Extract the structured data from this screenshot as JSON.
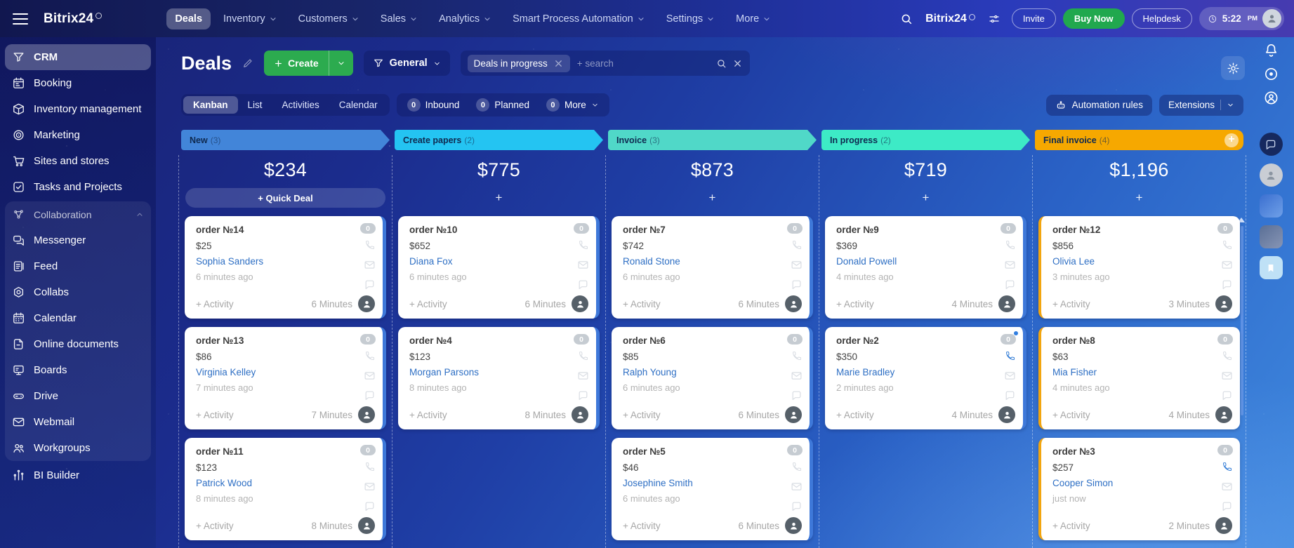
{
  "topbar": {
    "logo": "Bitrix24",
    "menu": [
      {
        "label": "Deals",
        "active": true,
        "caret": false
      },
      {
        "label": "Inventory",
        "caret": true
      },
      {
        "label": "Customers",
        "caret": true
      },
      {
        "label": "Sales",
        "caret": true
      },
      {
        "label": "Analytics",
        "caret": true
      },
      {
        "label": "Smart Process Automation",
        "caret": true
      },
      {
        "label": "Settings",
        "caret": true
      },
      {
        "label": "More",
        "caret": true
      }
    ],
    "portal": "Bitrix24",
    "invite": "Invite",
    "buy": "Buy Now",
    "helpdesk": "Helpdesk",
    "time": "5:22",
    "meridiem": "PM"
  },
  "sidebar": {
    "items_top": [
      {
        "label": "CRM",
        "icon": "crm",
        "active": true
      },
      {
        "label": "Booking",
        "icon": "booking"
      },
      {
        "label": "Inventory management",
        "icon": "inventory"
      },
      {
        "label": "Marketing",
        "icon": "marketing"
      },
      {
        "label": "Sites and stores",
        "icon": "sites"
      },
      {
        "label": "Tasks and Projects",
        "icon": "tasks"
      }
    ],
    "group": {
      "header": "Collaboration",
      "items": [
        {
          "label": "Messenger",
          "icon": "messenger"
        },
        {
          "label": "Feed",
          "icon": "feed"
        },
        {
          "label": "Collabs",
          "icon": "collabs"
        },
        {
          "label": "Calendar",
          "icon": "calendar"
        },
        {
          "label": "Online documents",
          "icon": "documents"
        },
        {
          "label": "Boards",
          "icon": "boards"
        },
        {
          "label": "Drive",
          "icon": "drive"
        },
        {
          "label": "Webmail",
          "icon": "webmail"
        },
        {
          "label": "Workgroups",
          "icon": "workgroups"
        }
      ]
    },
    "items_bottom": [
      {
        "label": "BI Builder",
        "icon": "bi"
      }
    ]
  },
  "header": {
    "title": "Deals",
    "create": "Create",
    "filter": "General",
    "chip": "Deals in progress",
    "search_placeholder": "+ search"
  },
  "tabs": {
    "views": [
      "Kanban",
      "List",
      "Activities",
      "Calendar"
    ],
    "active_index": 0,
    "counters": [
      {
        "count": "0",
        "label": "Inbound"
      },
      {
        "count": "0",
        "label": "Planned"
      },
      {
        "count": "0",
        "label": "More",
        "caret": true
      }
    ],
    "automation": "Automation rules",
    "extensions": "Extensions"
  },
  "board": {
    "columns": [
      {
        "name": "New",
        "count": "(3)",
        "color": "#4285d9",
        "total": "$234",
        "add_label": "+ Quick Deal",
        "quick": true,
        "accent_side": "right",
        "accent_color": "#3e78d9",
        "cards": [
          {
            "title": "order №14",
            "badge": "0",
            "amount": "$25",
            "contact": "Sophia Sanders",
            "ago": "6 minutes ago",
            "activity": "+ Activity",
            "minutes": "6 Minutes"
          },
          {
            "title": "order №13",
            "badge": "0",
            "amount": "$86",
            "contact": "Virginia Kelley",
            "ago": "7 minutes ago",
            "activity": "+ Activity",
            "minutes": "7 Minutes"
          },
          {
            "title": "order №11",
            "badge": "0",
            "amount": "$123",
            "contact": "Patrick Wood",
            "ago": "8 minutes ago",
            "activity": "+ Activity",
            "minutes": "8 Minutes"
          }
        ]
      },
      {
        "name": "Create papers",
        "count": "(2)",
        "color": "#24c4f2",
        "total": "$775",
        "add_label": "+",
        "quick": false,
        "accent_side": "right",
        "accent_color": "#3e78d9",
        "cards": [
          {
            "title": "order №10",
            "badge": "0",
            "amount": "$652",
            "contact": "Diana Fox",
            "ago": "6 minutes ago",
            "activity": "+ Activity",
            "minutes": "6 Minutes"
          },
          {
            "title": "order №4",
            "badge": "0",
            "amount": "$123",
            "contact": "Morgan Parsons",
            "ago": "8 minutes ago",
            "activity": "+ Activity",
            "minutes": "8 Minutes"
          }
        ]
      },
      {
        "name": "Invoice",
        "count": "(3)",
        "color": "#50d8c8",
        "total": "$873",
        "add_label": "+",
        "quick": false,
        "accent_side": "right",
        "accent_color": "#3e78d9",
        "cards": [
          {
            "title": "order №7",
            "badge": "0",
            "amount": "$742",
            "contact": "Ronald Stone",
            "ago": "6 minutes ago",
            "activity": "+ Activity",
            "minutes": "6 Minutes"
          },
          {
            "title": "order №6",
            "badge": "0",
            "amount": "$85",
            "contact": "Ralph Young",
            "ago": "6 minutes ago",
            "activity": "+ Activity",
            "minutes": "6 Minutes"
          },
          {
            "title": "order №5",
            "badge": "0",
            "amount": "$46",
            "contact": "Josephine Smith",
            "ago": "6 minutes ago",
            "activity": "+ Activity",
            "minutes": "6 Minutes"
          }
        ]
      },
      {
        "name": "In progress",
        "count": "(2)",
        "color": "#3deac6",
        "total": "$719",
        "add_label": "+",
        "quick": false,
        "accent_side": "right",
        "accent_color": "#3e78d9",
        "cards": [
          {
            "title": "order №9",
            "badge": "0",
            "amount": "$369",
            "contact": "Donald Powell",
            "ago": "4 minutes ago",
            "activity": "+ Activity",
            "minutes": "4 Minutes"
          },
          {
            "title": "order №2",
            "badge": "0",
            "amount": "$350",
            "contact": "Marie Bradley",
            "ago": "2 minutes ago",
            "activity": "+ Activity",
            "minutes": "4 Minutes",
            "phone_active": true,
            "badge_dot": true
          }
        ]
      },
      {
        "name": "Final invoice",
        "count": "(4)",
        "color": "#f6a800",
        "total": "$1,196",
        "add_label": "+",
        "quick": false,
        "accent_side": "left",
        "accent_color": "#f2a50f",
        "add_circle": true,
        "scrollbar": true,
        "cards": [
          {
            "title": "order №12",
            "badge": "0",
            "amount": "$856",
            "contact": "Olivia Lee",
            "ago": "3 minutes ago",
            "activity": "+ Activity",
            "minutes": "3 Minutes"
          },
          {
            "title": "order №8",
            "badge": "0",
            "amount": "$63",
            "contact": "Mia Fisher",
            "ago": "4 minutes ago",
            "activity": "+ Activity",
            "minutes": "4 Minutes"
          },
          {
            "title": "order №3",
            "badge": "0",
            "amount": "$257",
            "contact": "Cooper Simon",
            "ago": "just now",
            "activity": "+ Activity",
            "minutes": "2 Minutes",
            "phone_active": true
          }
        ]
      }
    ]
  },
  "rail": {
    "items": [
      {
        "name": "notifications-bell",
        "kind": "bell"
      },
      {
        "name": "copilot",
        "kind": "copilot"
      },
      {
        "name": "assistant",
        "kind": "assistant"
      },
      {
        "name": "messenger-app",
        "kind": "dark-chat"
      },
      {
        "name": "user-avatar",
        "kind": "avatar"
      },
      {
        "name": "app-tile-blue",
        "kind": "tile-blue"
      },
      {
        "name": "app-tile-slate",
        "kind": "tile-slate"
      },
      {
        "name": "bookmarks",
        "kind": "bookmark"
      }
    ]
  },
  "colors": {
    "create_green": "#2cab4f",
    "buy_now_green": "#21a84e",
    "card_accent_blue": "#3e78d9",
    "card_accent_orange": "#f2a50f",
    "contact_link": "#2e6fc4"
  }
}
